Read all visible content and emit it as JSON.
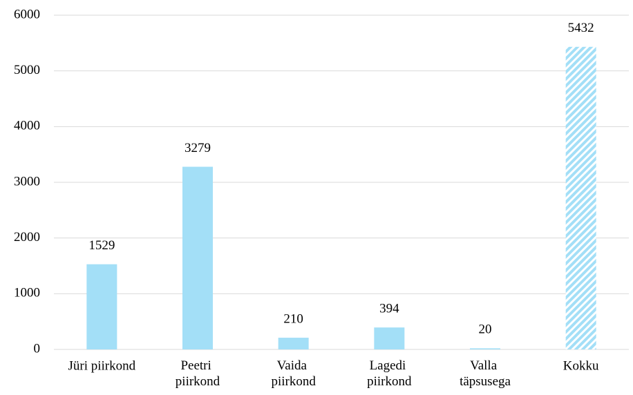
{
  "chart_data": {
    "type": "bar",
    "categories": [
      "Jüri piirkond",
      "Peetri piirkond",
      "Vaida piirkond",
      "Lagedi piirkond",
      "Valla täpsusega",
      "Kokku"
    ],
    "values": [
      1529,
      3279,
      210,
      394,
      20,
      5432
    ],
    "color": "#a3dff7",
    "hatched": [
      false,
      false,
      false,
      false,
      false,
      true
    ],
    "ylim": [
      0,
      6000
    ],
    "yticks": [
      0,
      1000,
      2000,
      3000,
      4000,
      5000,
      6000
    ],
    "grid": true
  }
}
